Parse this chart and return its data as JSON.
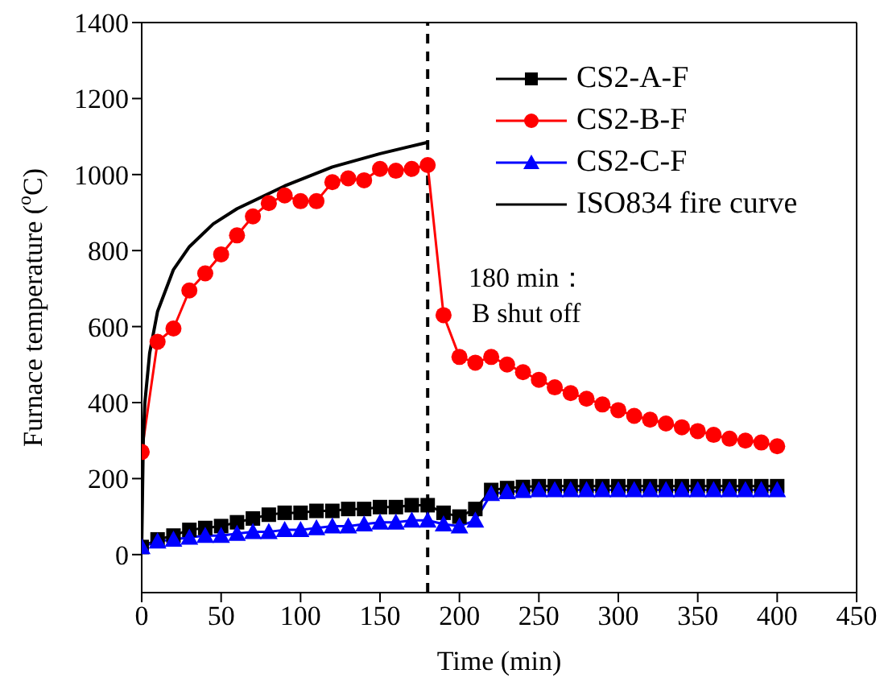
{
  "chart_data": {
    "type": "line",
    "xlabel": "Time (min)",
    "ylabel": "Furnace temperature ($^{o}$C)",
    "xlim": [
      0,
      450
    ],
    "xticks": [
      0,
      50,
      100,
      150,
      200,
      250,
      300,
      350,
      400,
      450
    ],
    "ylim": [
      -100,
      1400
    ],
    "yticks": [
      0,
      200,
      400,
      600,
      800,
      1000,
      1200,
      1400
    ],
    "legend": "top right",
    "series": [
      {
        "name": "CS2-A-F",
        "color": "#000000",
        "marker": "square",
        "x": [
          0,
          10,
          20,
          30,
          40,
          50,
          60,
          70,
          80,
          90,
          100,
          110,
          120,
          130,
          140,
          150,
          160,
          170,
          180,
          190,
          200,
          210,
          220,
          230,
          240,
          250,
          260,
          270,
          280,
          290,
          300,
          310,
          320,
          330,
          340,
          350,
          360,
          370,
          380,
          390,
          400
        ],
        "values": [
          20,
          40,
          50,
          65,
          70,
          75,
          85,
          95,
          105,
          110,
          110,
          115,
          115,
          120,
          120,
          125,
          125,
          130,
          130,
          110,
          100,
          120,
          170,
          175,
          178,
          180,
          180,
          180,
          180,
          180,
          180,
          180,
          180,
          180,
          180,
          180,
          180,
          180,
          180,
          180,
          180
        ]
      },
      {
        "name": "CS2-B-F",
        "color": "#ff0000",
        "marker": "circle",
        "x": [
          0,
          10,
          20,
          30,
          40,
          50,
          60,
          70,
          80,
          90,
          100,
          110,
          120,
          130,
          140,
          150,
          160,
          170,
          180,
          190,
          200,
          210,
          220,
          230,
          240,
          250,
          260,
          270,
          280,
          290,
          300,
          310,
          320,
          330,
          340,
          350,
          360,
          370,
          380,
          390,
          400
        ],
        "values": [
          270,
          560,
          595,
          695,
          740,
          790,
          840,
          890,
          925,
          945,
          930,
          930,
          980,
          990,
          985,
          1015,
          1010,
          1015,
          1025,
          630,
          520,
          505,
          520,
          500,
          480,
          460,
          440,
          425,
          410,
          395,
          380,
          365,
          355,
          345,
          335,
          325,
          315,
          305,
          300,
          295,
          285
        ]
      },
      {
        "name": "CS2-C-F",
        "color": "#0000ff",
        "marker": "triangle",
        "x": [
          0,
          10,
          20,
          30,
          40,
          50,
          60,
          70,
          80,
          90,
          100,
          110,
          120,
          130,
          140,
          150,
          160,
          170,
          180,
          190,
          200,
          210,
          220,
          230,
          240,
          250,
          260,
          270,
          280,
          290,
          300,
          310,
          320,
          330,
          340,
          350,
          360,
          370,
          380,
          390,
          400
        ],
        "values": [
          20,
          35,
          40,
          45,
          50,
          50,
          55,
          60,
          60,
          65,
          65,
          70,
          75,
          75,
          80,
          85,
          85,
          90,
          90,
          80,
          75,
          90,
          160,
          165,
          168,
          170,
          170,
          170,
          170,
          170,
          170,
          170,
          170,
          170,
          170,
          170,
          170,
          170,
          170,
          170,
          170
        ]
      },
      {
        "name": "ISO834 fire curve",
        "color": "#000000",
        "marker": "none",
        "x": [
          0,
          1,
          2,
          5,
          10,
          20,
          30,
          45,
          60,
          90,
          120,
          150,
          180
        ],
        "values": [
          20,
          300,
          400,
          530,
          640,
          750,
          810,
          870,
          910,
          970,
          1020,
          1055,
          1085
        ]
      }
    ],
    "ref_lines": [
      {
        "axis": "x",
        "value": 180,
        "color": "#000000",
        "line_style": "dashed"
      }
    ],
    "annotations": [
      "180 min：\nB shut off"
    ]
  }
}
